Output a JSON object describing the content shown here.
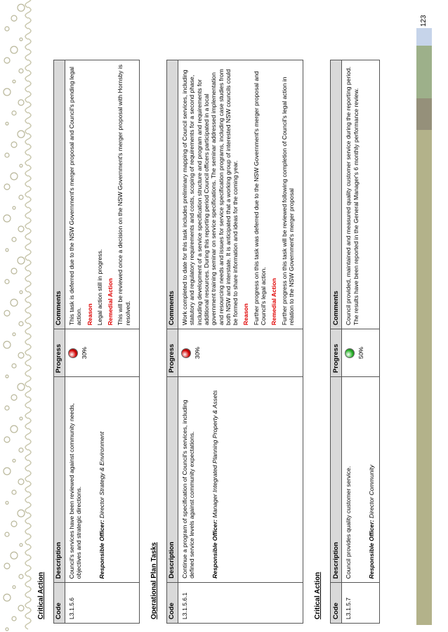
{
  "page_number": "123",
  "sections": [
    {
      "heading": "Critical Action",
      "columns": [
        "Code",
        "Description",
        "Progress",
        "Comments"
      ],
      "rows": [
        {
          "code": "L3.1.5.6",
          "description": "Council's services have been reviewed against community needs, objectives and strategic directions.",
          "officer_label": "Responsible Officer:",
          "officer": "Director Strategy & Environment",
          "progress": "30%",
          "status_color": "#d40000",
          "comments": [
            {
              "text": "This task is deferred due to the NSW Government's merger proposal and Council's pending legal action."
            },
            {
              "heading": "Reason"
            },
            {
              "text": "Legal action still in progress."
            },
            {
              "heading": "Remedial Action"
            },
            {
              "text": "This will be reviewed once a decision on the NSW Government's merger proposal with Hornsby is resolved."
            }
          ]
        }
      ]
    },
    {
      "heading": "Operational Plan Tasks",
      "columns": [
        "Code",
        "Description",
        "Progress",
        "Comments"
      ],
      "rows": [
        {
          "code": "L3.1.5.6.1",
          "description": "Continue a program of specification of Council's services, including defined service levels against community expectations.",
          "officer_label": "Responsible Officer:",
          "officer": "Manager Integrated Planning Property & Assets",
          "progress": "30%",
          "status_color": "#d40000",
          "comments": [
            {
              "text": "Work completed to date for this task includes preliminary mapping of Council services, including statutory and regulatory requirements and costs, scoping of requirements for a second phase, including development of a service specification structure and program and requirements for additional resources. During this reporting period Council officers participated in a local government training seminar on service specifications. The seminar addressed implementation and resourcing needs and issues for service specification programs, including case studies from both NSW and interstate. It is anticipated that a working group of interested NSW councils could be formed to share information and ideas for the coming year."
            },
            {
              "heading": "Reason"
            },
            {
              "text": "Further progress on this task was deferred due to the NSW Government's merger proposal and Council's legal action."
            },
            {
              "heading": "Remedial Action"
            },
            {
              "text": "Further progress on this task will be reviewed following completion of Council's legal action in relation to the NSW Government's merger proposal"
            }
          ]
        }
      ]
    },
    {
      "heading": "Critical Action",
      "columns": [
        "Code",
        "Description",
        "Progress",
        "Comments"
      ],
      "rows": [
        {
          "code": "L3.1.5.7",
          "description": "Council provides quality customer service.",
          "officer_label": "Responsible Officer:",
          "officer": "Director Community",
          "progress": "50%",
          "status_color": "#22b022",
          "comments": [
            {
              "text": "Council provided, maintained and measured quality customer service during the reporting period. The results have been reported in the General Manager's 6 monthly performance review."
            }
          ]
        }
      ]
    }
  ]
}
